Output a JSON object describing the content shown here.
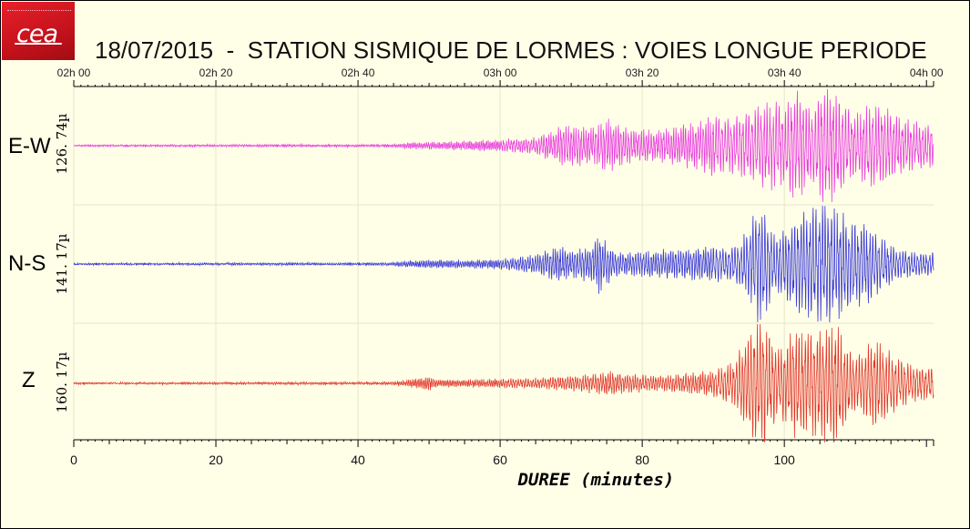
{
  "logo": {
    "text": "cea"
  },
  "title": "18/07/2015  -  STATION SISMIQUE DE LORMES : VOIES LONGUE PERIODE",
  "chart_data": {
    "type": "line",
    "title": "18/07/2015  -  STATION SISMIQUE DE LORMES : VOIES LONGUE PERIODE",
    "xlabel": "DUREE (minutes)",
    "xlim": [
      0,
      121
    ],
    "x_ticks": [
      0,
      20,
      40,
      60,
      80,
      100
    ],
    "x_tick_labels": [
      "0",
      "20",
      "40",
      "60",
      "80",
      "100"
    ],
    "time_ticks": [
      "02h 00",
      "02h 20",
      "02h 40",
      "03h 00",
      "03h 20",
      "03h 40",
      "04h 00"
    ],
    "grid": true,
    "channels": [
      {
        "name": "E-W",
        "scale": "126. 74µ",
        "color": "#e83ce0",
        "envelope": {
          "x": [
            0,
            44,
            47,
            50,
            55,
            60,
            65,
            68,
            70,
            73,
            75,
            78,
            82,
            86,
            88,
            90,
            92,
            95,
            97,
            99,
            100,
            101,
            102,
            104,
            105,
            106,
            107,
            108,
            109,
            110,
            112,
            114,
            116,
            118,
            121
          ],
          "amp": [
            0.01,
            0.02,
            0.05,
            0.06,
            0.08,
            0.1,
            0.14,
            0.3,
            0.35,
            0.3,
            0.45,
            0.3,
            0.25,
            0.35,
            0.4,
            0.5,
            0.45,
            0.55,
            0.7,
            0.75,
            0.6,
            0.85,
            0.95,
            0.6,
            0.85,
            1.0,
            0.95,
            0.8,
            0.6,
            0.5,
            0.7,
            0.65,
            0.5,
            0.4,
            0.35
          ]
        }
      },
      {
        "name": "N-S",
        "scale": "141. 17µ",
        "color": "#3a3ad8",
        "envelope": {
          "x": [
            0,
            44,
            47,
            50,
            55,
            60,
            65,
            68,
            70,
            73,
            74,
            75,
            76,
            78,
            82,
            86,
            90,
            92,
            94,
            95,
            96,
            97,
            98,
            99,
            100,
            101,
            102,
            104,
            106,
            108,
            110,
            112,
            114,
            116,
            118,
            121
          ],
          "amp": [
            0.01,
            0.02,
            0.05,
            0.07,
            0.06,
            0.08,
            0.15,
            0.3,
            0.22,
            0.3,
            0.5,
            0.35,
            0.2,
            0.2,
            0.22,
            0.25,
            0.3,
            0.25,
            0.4,
            0.6,
            0.9,
            1.0,
            0.6,
            0.45,
            0.55,
            0.65,
            0.8,
            0.9,
            1.0,
            0.85,
            0.7,
            0.6,
            0.4,
            0.25,
            0.2,
            0.18
          ]
        }
      },
      {
        "name": "Z",
        "scale": "160. 17µ",
        "color": "#e0382e",
        "envelope": {
          "x": [
            0,
            44,
            47,
            50,
            51,
            55,
            60,
            65,
            70,
            73,
            75,
            78,
            82,
            86,
            90,
            93,
            94,
            95,
            96,
            97,
            98,
            99,
            100,
            101,
            102,
            104,
            106,
            107,
            108,
            109,
            110,
            111,
            112,
            113,
            114,
            116,
            118,
            121
          ],
          "amp": [
            0.01,
            0.02,
            0.05,
            0.12,
            0.06,
            0.06,
            0.07,
            0.08,
            0.12,
            0.15,
            0.2,
            0.15,
            0.12,
            0.15,
            0.2,
            0.35,
            0.6,
            0.85,
            0.95,
            1.0,
            0.8,
            0.55,
            0.65,
            0.8,
            0.9,
            0.85,
            0.95,
            1.0,
            0.8,
            0.55,
            0.45,
            0.5,
            0.65,
            0.75,
            0.6,
            0.4,
            0.3,
            0.25
          ]
        }
      }
    ]
  }
}
